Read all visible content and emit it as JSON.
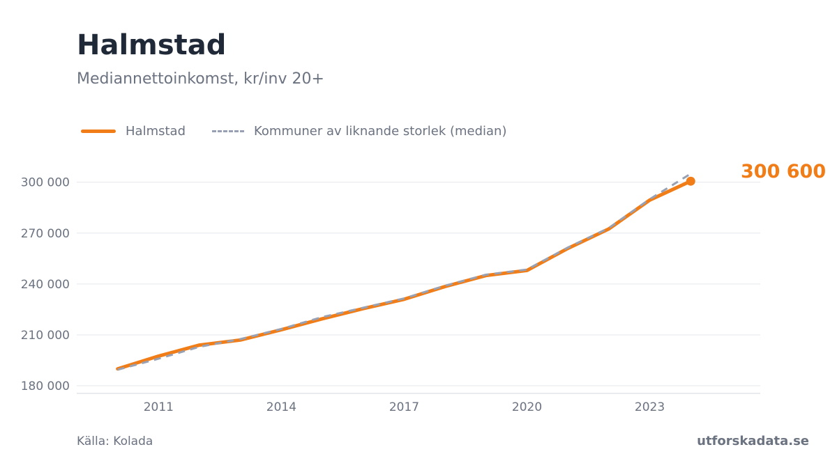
{
  "header": {
    "title": "Halmstad",
    "subtitle": "Mediannettoinkomst, kr/inv 20+"
  },
  "legend": {
    "items": [
      {
        "label": "Halmstad",
        "style": "solid",
        "color": "#f07d17"
      },
      {
        "label": "Kommuner av liknande storlek (median)",
        "style": "dashed",
        "color": "#98a1b3"
      }
    ]
  },
  "footer": {
    "source": "Källa: Kolada",
    "brand": "utforskadata.se"
  },
  "chart_data": {
    "type": "line",
    "x": [
      2010,
      2011,
      2012,
      2013,
      2014,
      2015,
      2016,
      2017,
      2018,
      2019,
      2020,
      2021,
      2022,
      2023,
      2024
    ],
    "xticks": [
      2011,
      2014,
      2017,
      2020,
      2023
    ],
    "xtick_labels": [
      "2011",
      "2014",
      "2017",
      "2020",
      "2023"
    ],
    "yticks": [
      180000,
      210000,
      240000,
      270000,
      300000
    ],
    "ytick_labels": [
      "180 000",
      "210 000",
      "240 000",
      "270 000",
      "300 000"
    ],
    "xlim": [
      2009,
      2025.7
    ],
    "ylim": [
      175500,
      313000
    ],
    "grid": "horizontal",
    "series": [
      {
        "name": "Halmstad",
        "color": "#f07d17",
        "style": "solid",
        "values": [
          190000,
          197500,
          204000,
          207000,
          213000,
          219500,
          225500,
          231000,
          238500,
          245000,
          248000,
          261000,
          272500,
          289500,
          300600
        ]
      },
      {
        "name": "Kommuner av liknande storlek (median)",
        "color": "#98a1b3",
        "style": "dashed",
        "values": [
          189500,
          196000,
          203000,
          207500,
          213500,
          220500,
          226000,
          231500,
          239000,
          245500,
          248500,
          261500,
          273000,
          290000,
          305000
        ]
      }
    ],
    "end_label": "300 600"
  }
}
